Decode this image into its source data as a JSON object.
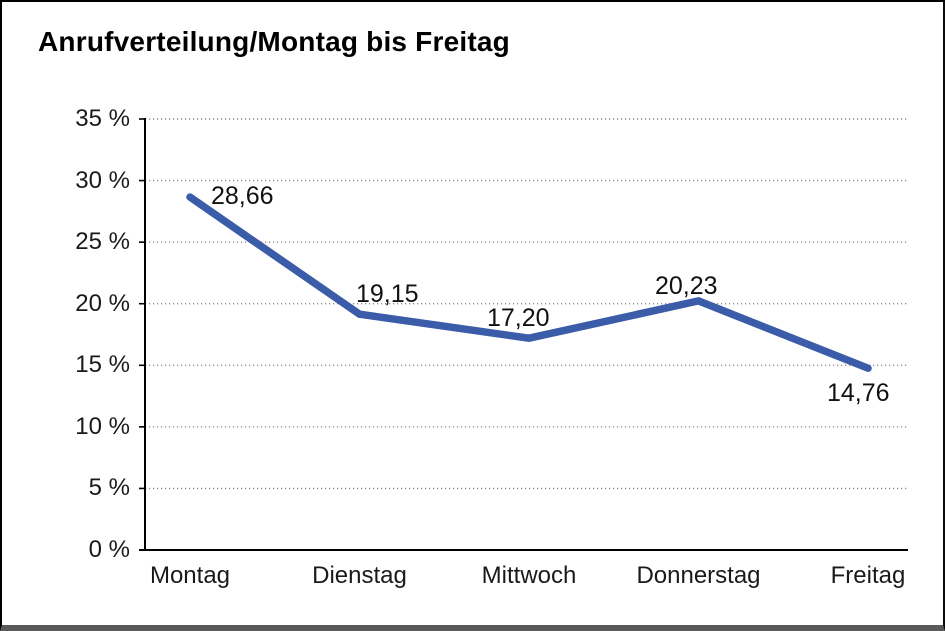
{
  "chart_data": {
    "type": "line",
    "title": "Anrufverteilung/Montag bis Freitag",
    "categories": [
      "Montag",
      "Dienstag",
      "Mittwoch",
      "Donnerstag",
      "Freitag"
    ],
    "values": [
      28.66,
      19.15,
      17.2,
      20.23,
      14.76
    ],
    "data_labels": [
      "28,66",
      "19,15",
      "17,20",
      "20,23",
      "14,76"
    ],
    "y_tick_labels": [
      "0 %",
      "5 %",
      "10 %",
      "15 %",
      "20 %",
      "25 %",
      "30 %",
      "35 %"
    ],
    "ylim": [
      0,
      35
    ],
    "y_step": 5,
    "xlabel": "",
    "ylabel": "",
    "grid": "horizontal-dotted",
    "legend": "none",
    "colors": {
      "line": "#3b5ca8",
      "grid_dots": "#8c8c8c",
      "axis": "#000000",
      "text": "#1a1a1a"
    }
  }
}
